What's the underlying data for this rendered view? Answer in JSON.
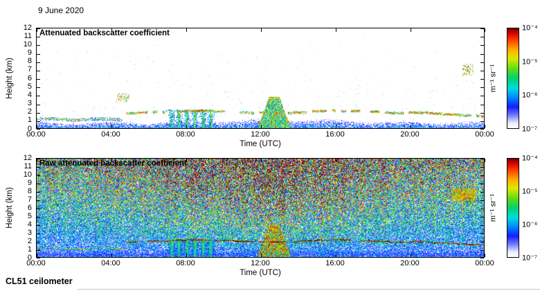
{
  "date_label": "9 June 2020",
  "footer_label": "CL51 ceilometer",
  "colorbar": {
    "unit_label": "m⁻¹ sr⁻¹",
    "tick_labels": [
      "10⁻⁴",
      "10⁻⁵",
      "10⁻⁶",
      "10⁻⁷"
    ],
    "scale": "log",
    "range_min": "1e-7",
    "range_max": "1e-4",
    "colormap": "jet with white at minimum"
  },
  "chart_data": [
    {
      "type": "heatmap",
      "title": "Attenuated backscatter coefficient",
      "xlabel": "Time (UTC)",
      "ylabel": "Height (km)",
      "x_tick_labels": [
        "00:00",
        "04:00",
        "08:00",
        "12:00",
        "16:00",
        "20:00",
        "00:00"
      ],
      "x_range_hours": [
        0,
        24
      ],
      "y_tick_labels": [
        "0",
        "1",
        "2",
        "3",
        "4",
        "5",
        "6",
        "7",
        "8",
        "9",
        "10",
        "11",
        "12"
      ],
      "y_range_km": [
        0,
        12
      ],
      "color_scale": "log",
      "color_range": [
        "1e-7",
        "1e-4"
      ],
      "unit": "m⁻¹ sr⁻¹",
      "features": [
        {
          "name": "boundary-layer-aerosol",
          "time_utc": [
            0,
            24
          ],
          "height_km": [
            0,
            1.1
          ],
          "appearance": "blue speckle, ~1e-7 to 1e-6, deepest around midday"
        },
        {
          "name": "residual-layer-top",
          "time_utc": [
            0,
            4.6
          ],
          "height_km": [
            0.95,
            1.15
          ],
          "appearance": "thin orange-red aerosol layer ~5e-6"
        },
        {
          "name": "cloud-base-layer",
          "time_utc": [
            4.8,
            24
          ],
          "height_km": [
            1.4,
            2.2
          ],
          "appearance": "intermittent red cloud-base returns >1e-5 with green fringe, descending to ~1.5 km after 20:00"
        },
        {
          "name": "precipitation-streaks",
          "time_utc": [
            7.0,
            9.6
          ],
          "height_km": [
            0,
            2.2
          ],
          "streak_centers_utc": [
            7.25,
            7.65,
            8.05,
            8.5,
            8.95,
            9.35
          ],
          "appearance": "green virga streaks from cloud to ground ~1e-6"
        },
        {
          "name": "convective-plume",
          "time_utc": [
            11.9,
            13.6
          ],
          "height_km": [
            0,
            3.8
          ],
          "appearance": "green-yellow plume up to ~3.8 km with red top, ~1e-6 to 1e-5"
        },
        {
          "name": "cloud-specks",
          "time_utc": [
            4.25,
            4.95
          ],
          "height_km": [
            3.1,
            4.2
          ],
          "appearance": "scattered mid-level cloud returns"
        },
        {
          "name": "high-cloud-specks",
          "time_utc": [
            22.85,
            23.45
          ],
          "height_km": [
            6.3,
            7.7
          ],
          "appearance": "sparse high-level returns"
        }
      ]
    },
    {
      "type": "heatmap",
      "title": "Raw attenuated backscatter coefficient",
      "xlabel": "Time (UTC)",
      "ylabel": "Height (km)",
      "x_tick_labels": [
        "00:00",
        "04:00",
        "08:00",
        "12:00",
        "16:00",
        "20:00",
        "00:00"
      ],
      "x_range_hours": [
        0,
        24
      ],
      "y_tick_labels": [
        "0",
        "1",
        "2",
        "3",
        "4",
        "5",
        "6",
        "7",
        "8",
        "9",
        "10",
        "11",
        "12"
      ],
      "y_range_km": [
        0,
        12
      ],
      "color_scale": "log",
      "color_range": [
        "1e-7",
        "1e-4"
      ],
      "unit": "m⁻¹ sr⁻¹",
      "features": [
        {
          "name": "background-noise",
          "time_utc": [
            0,
            24
          ],
          "height_km": [
            0,
            12
          ],
          "appearance": "rainbow speckle noise increasing with height; strongest (red/orange) aloft around midday from solar background; vertical striping"
        },
        {
          "name": "boundary-layer-aerosol",
          "time_utc": [
            0,
            24
          ],
          "height_km": [
            0,
            1.1
          ],
          "appearance": "light blue/white speckle near surface"
        },
        {
          "name": "residual-layer-top",
          "time_utc": [
            0,
            4.6
          ],
          "height_km": [
            0.95,
            1.15
          ],
          "appearance": "red dotted layer"
        },
        {
          "name": "cloud-base-layer",
          "time_utc": [
            4.8,
            24
          ],
          "height_km": [
            1.4,
            2.2
          ],
          "appearance": "nearly continuous dark-red cloud-base line"
        },
        {
          "name": "precipitation-streaks",
          "time_utc": [
            7.0,
            9.6
          ],
          "height_km": [
            0,
            2.2
          ],
          "streak_centers_utc": [
            7.25,
            7.65,
            8.05,
            8.5,
            8.95,
            9.35
          ],
          "appearance": "green-cyan streaks to ground"
        },
        {
          "name": "convective-plume",
          "time_utc": [
            11.9,
            13.6
          ],
          "height_km": [
            0,
            3.8
          ],
          "appearance": "strong red plume to ~3.8 km"
        },
        {
          "name": "high-cloud-specks",
          "time_utc": [
            22.85,
            23.45
          ],
          "height_km": [
            6.3,
            7.7
          ],
          "appearance": "red specks"
        },
        {
          "name": "midlevel-cloud-blob",
          "time_utc": [
            22.3,
            23.6
          ],
          "height_km": [
            6.8,
            8.3
          ],
          "appearance": "dense yellow-orange cloud signal"
        }
      ]
    }
  ]
}
